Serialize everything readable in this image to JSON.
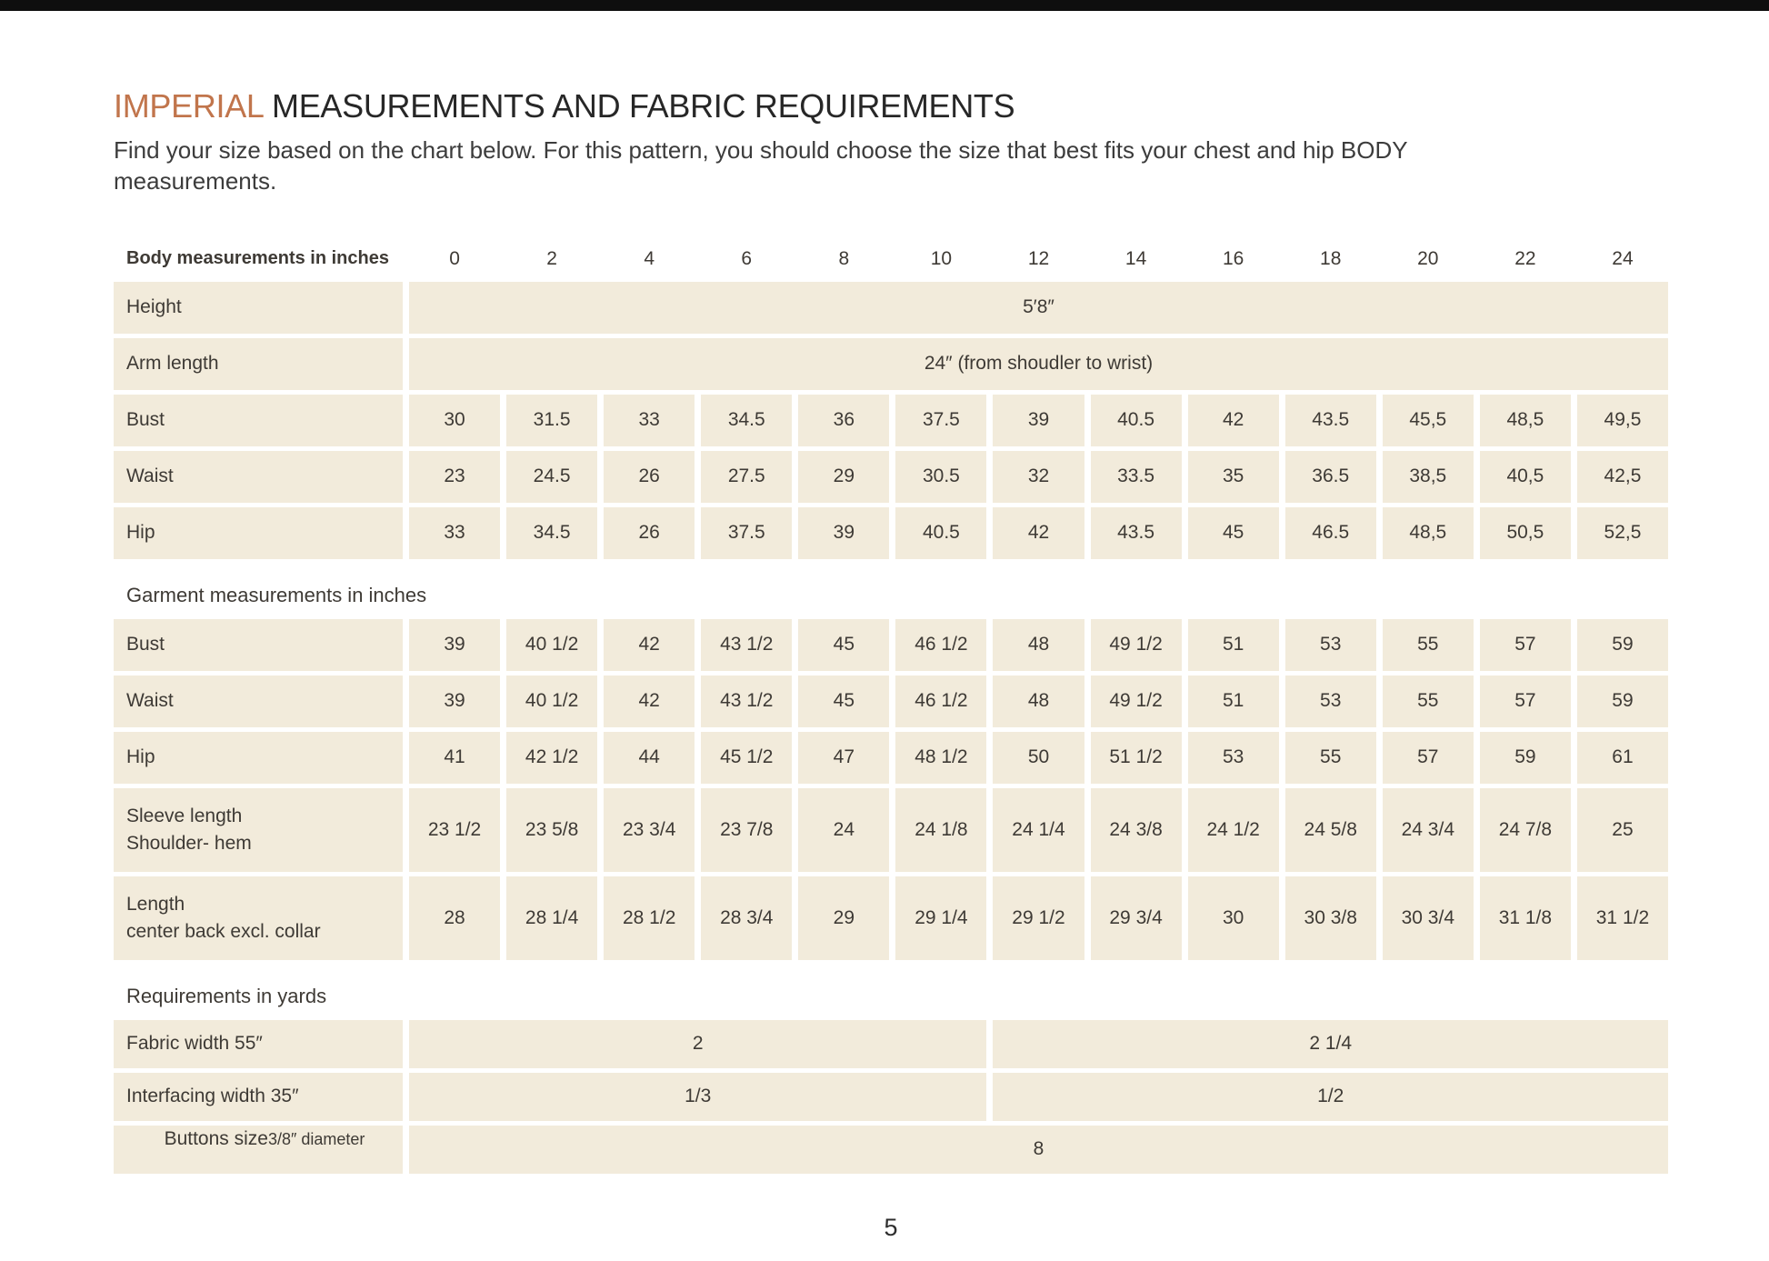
{
  "page": {
    "title_highlight": "IMPERIAL",
    "title_rest": " MEASUREMENTS AND FABRIC REQUIREMENTS",
    "subtitle": "Find your size based on the chart below. For this pattern, you should choose the size that best fits your chest and hip BODY measurements.",
    "page_number": "5",
    "accent_color": "#c1754c",
    "cell_color": "#f2ebdb",
    "text_color": "#3e3a35"
  },
  "chart_data": {
    "type": "table",
    "header": {
      "label": "Body measurements in inches",
      "sizes": [
        "0",
        "2",
        "4",
        "6",
        "8",
        "10",
        "12",
        "14",
        "16",
        "18",
        "20",
        "22",
        "24"
      ]
    },
    "body_rows": [
      {
        "label": "Height",
        "span_value": "5′8″"
      },
      {
        "label": "Arm length",
        "span_value": "24″ (from shoudler to wrist)"
      },
      {
        "label": "Bust",
        "values": [
          "30",
          "31.5",
          "33",
          "34.5",
          "36",
          "37.5",
          "39",
          "40.5",
          "42",
          "43.5",
          "45,5",
          "48,5",
          "49,5"
        ]
      },
      {
        "label": "Waist",
        "values": [
          "23",
          "24.5",
          "26",
          "27.5",
          "29",
          "30.5",
          "32",
          "33.5",
          "35",
          "36.5",
          "38,5",
          "40,5",
          "42,5"
        ]
      },
      {
        "label": "Hip",
        "values": [
          "33",
          "34.5",
          "26",
          "37.5",
          "39",
          "40.5",
          "42",
          "43.5",
          "45",
          "46.5",
          "48,5",
          "50,5",
          "52,5"
        ]
      }
    ],
    "garment_section_label": "Garment measurements in inches",
    "garment_rows": [
      {
        "label": "Bust",
        "values": [
          "39",
          "40 1/2",
          "42",
          "43 1/2",
          "45",
          "46 1/2",
          "48",
          "49 1/2",
          "51",
          "53",
          "55",
          "57",
          "59"
        ]
      },
      {
        "label": "Waist",
        "values": [
          "39",
          "40 1/2",
          "42",
          "43 1/2",
          "45",
          "46 1/2",
          "48",
          "49 1/2",
          "51",
          "53",
          "55",
          "57",
          "59"
        ]
      },
      {
        "label": "Hip",
        "values": [
          "41",
          "42 1/2",
          "44",
          "45 1/2",
          "47",
          "48 1/2",
          "50",
          "51 1/2",
          "53",
          "55",
          "57",
          "59",
          "61"
        ]
      },
      {
        "label": "Sleeve length",
        "label2": "Shoulder- hem",
        "values": [
          "23 1/2",
          "23 5/8",
          "23 3/4",
          "23 7/8",
          "24",
          "24 1/8",
          "24 1/4",
          "24 3/8",
          "24 1/2",
          "24 5/8",
          "24 3/4",
          "24 7/8",
          "25"
        ]
      },
      {
        "label": "Length",
        "label2": "center back excl. collar",
        "values": [
          "28",
          "28 1/4",
          "28 1/2",
          "28 3/4",
          "29",
          "29 1/4",
          "29 1/2",
          "29 3/4",
          "30",
          "30 3/8",
          "30 3/4",
          "31 1/8",
          "31 1/2"
        ]
      }
    ],
    "requirements_section_label": "Requirements in yards",
    "requirement_rows": [
      {
        "label": "Fabric width 55″",
        "value_left": "2",
        "value_right": "2 1/4"
      },
      {
        "label": "Interfacing width 35″",
        "value_left": "1/3",
        "value_right": "1/2"
      },
      {
        "label": "Buttons size",
        "label_small": "3/8″ diameter",
        "span_value": "8"
      }
    ]
  }
}
